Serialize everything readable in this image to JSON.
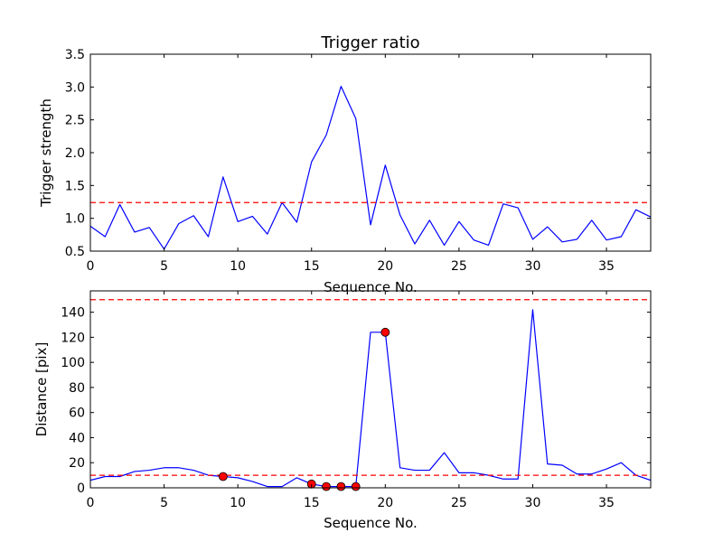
{
  "chart_data": [
    {
      "type": "line",
      "title": "Trigger ratio",
      "xlabel": "Sequence No.",
      "ylabel": "Trigger strength",
      "xlim": [
        0,
        38
      ],
      "ylim": [
        0.5,
        3.5
      ],
      "xticks": [
        0,
        5,
        10,
        15,
        20,
        25,
        30,
        35
      ],
      "yticks": [
        0.5,
        1.0,
        1.5,
        2.0,
        2.5,
        3.0,
        3.5
      ],
      "xtick_labels": [
        "0",
        "5",
        "10",
        "15",
        "20",
        "25",
        "30",
        "35"
      ],
      "ytick_labels": [
        "0.5",
        "1.0",
        "1.5",
        "2.0",
        "2.5",
        "3.0",
        "3.5"
      ],
      "grid": false,
      "series": [
        {
          "color": "#0000ff",
          "style": "solid",
          "x": [
            0,
            1,
            2,
            3,
            4,
            5,
            6,
            7,
            8,
            9,
            10,
            11,
            12,
            13,
            14,
            15,
            16,
            17,
            18,
            19,
            20,
            21,
            22,
            23,
            24,
            25,
            26,
            27,
            28,
            29,
            30,
            31,
            32,
            33,
            34,
            35,
            36,
            37,
            38
          ],
          "y": [
            0.88,
            0.72,
            1.21,
            0.79,
            0.86,
            0.53,
            0.92,
            1.04,
            0.72,
            1.63,
            0.95,
            1.03,
            0.76,
            1.24,
            0.94,
            1.86,
            2.27,
            3.01,
            2.52,
            0.9,
            1.81,
            1.05,
            0.61,
            0.97,
            0.59,
            0.95,
            0.67,
            0.59,
            1.22,
            1.16,
            0.68,
            0.87,
            0.64,
            0.68,
            0.97,
            0.67,
            0.72,
            1.13,
            1.02
          ]
        }
      ],
      "hlines": [
        {
          "y": 1.24,
          "color": "#ff0000",
          "style": "dashed"
        }
      ]
    },
    {
      "type": "line",
      "title": "",
      "xlabel": "Sequence No.",
      "ylabel": "Distance [pix]",
      "xlim": [
        0,
        38
      ],
      "ylim": [
        0,
        157
      ],
      "xticks": [
        0,
        5,
        10,
        15,
        20,
        25,
        30,
        35
      ],
      "yticks": [
        0,
        20,
        40,
        60,
        80,
        100,
        120,
        140
      ],
      "xtick_labels": [
        "0",
        "5",
        "10",
        "15",
        "20",
        "25",
        "30",
        "35"
      ],
      "ytick_labels": [
        "0",
        "20",
        "40",
        "60",
        "80",
        "100",
        "120",
        "140"
      ],
      "grid": false,
      "series": [
        {
          "color": "#0000ff",
          "style": "solid",
          "x": [
            0,
            1,
            2,
            3,
            4,
            5,
            6,
            7,
            8,
            9,
            10,
            11,
            12,
            13,
            14,
            15,
            16,
            17,
            18,
            19,
            20,
            21,
            22,
            23,
            24,
            25,
            26,
            27,
            28,
            29,
            30,
            31,
            32,
            33,
            34,
            35,
            36,
            37,
            38
          ],
          "y": [
            6,
            9,
            9,
            13,
            14,
            16,
            16,
            14,
            10,
            9,
            8,
            5,
            1,
            1,
            8,
            3,
            1,
            1,
            1,
            124,
            124,
            16,
            14,
            14,
            28,
            12,
            12,
            10,
            7,
            7,
            142,
            19,
            18,
            11,
            11,
            15,
            20,
            10,
            6
          ]
        }
      ],
      "markers": {
        "color": "#ff0000",
        "x": [
          9,
          15,
          16,
          17,
          18,
          20
        ],
        "y": [
          9,
          3,
          1,
          1,
          1,
          124
        ]
      },
      "hlines": [
        {
          "y": 150,
          "color": "#ff0000",
          "style": "dashed"
        },
        {
          "y": 10,
          "color": "#ff0000",
          "style": "dashed"
        }
      ]
    }
  ]
}
